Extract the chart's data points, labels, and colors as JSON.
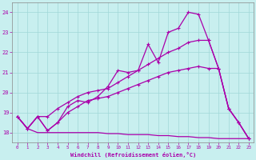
{
  "xlabel": "Windchill (Refroidissement éolien,°C)",
  "bg_color": "#c8efef",
  "grid_color": "#a0d8d8",
  "line_color": "#aa00aa",
  "x_values": [
    0,
    1,
    2,
    3,
    4,
    5,
    6,
    7,
    8,
    9,
    10,
    11,
    12,
    13,
    14,
    15,
    16,
    17,
    18,
    19,
    20,
    21,
    22,
    23
  ],
  "series_spike": [
    18.8,
    18.2,
    18.8,
    18.1,
    18.5,
    19.3,
    19.6,
    19.5,
    19.8,
    20.3,
    21.1,
    21.0,
    21.1,
    22.4,
    21.5,
    23.0,
    23.2,
    24.0,
    23.9,
    22.6,
    21.2,
    19.2,
    18.5,
    17.7
  ],
  "series_upper": [
    18.8,
    18.2,
    18.8,
    18.8,
    19.2,
    19.5,
    19.8,
    20.0,
    20.1,
    20.2,
    20.5,
    20.8,
    21.1,
    21.4,
    21.7,
    22.0,
    22.2,
    22.5,
    22.6,
    22.6,
    21.2,
    19.2,
    18.5,
    17.7
  ],
  "series_mid": [
    18.8,
    18.2,
    18.8,
    18.1,
    18.5,
    19.0,
    19.3,
    19.6,
    19.7,
    19.8,
    20.0,
    20.2,
    20.4,
    20.6,
    20.8,
    21.0,
    21.1,
    21.2,
    21.3,
    21.2,
    21.2,
    19.2,
    18.5,
    17.7
  ],
  "series_flat": [
    18.8,
    18.2,
    18.0,
    18.0,
    18.0,
    18.0,
    18.0,
    18.0,
    18.0,
    17.95,
    17.95,
    17.9,
    17.9,
    17.9,
    17.85,
    17.85,
    17.8,
    17.8,
    17.75,
    17.75,
    17.7,
    17.7,
    17.7,
    17.7
  ],
  "ylim": [
    17.5,
    24.5
  ],
  "xlim": [
    -0.5,
    23.5
  ],
  "yticks": [
    18,
    19,
    20,
    21,
    22,
    23,
    24
  ],
  "xticks": [
    0,
    1,
    2,
    3,
    4,
    5,
    6,
    7,
    8,
    9,
    10,
    11,
    12,
    13,
    14,
    15,
    16,
    17,
    18,
    19,
    20,
    21,
    22,
    23
  ]
}
